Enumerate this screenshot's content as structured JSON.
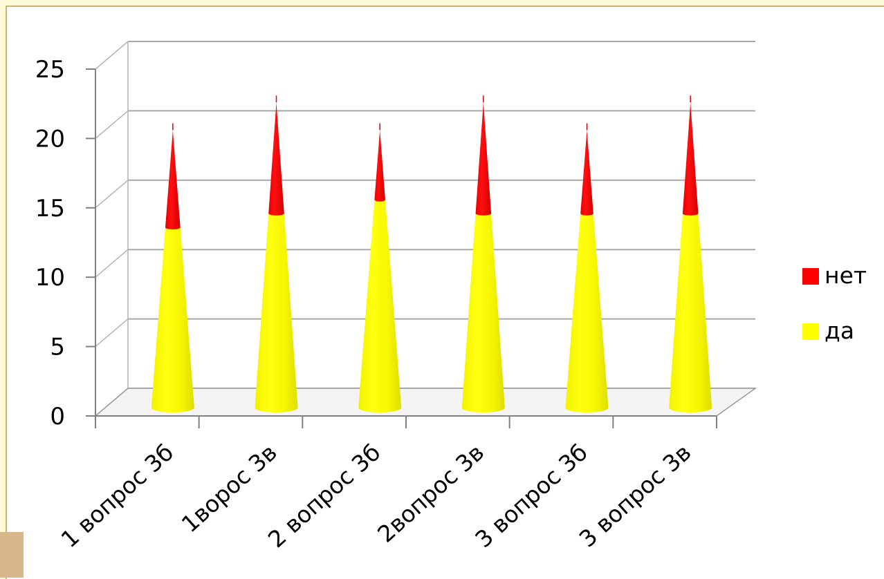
{
  "chart_data": {
    "type": "bar",
    "shape": "cone",
    "stacked": true,
    "three_d": true,
    "categories": [
      "1 вопрос 3б",
      "1ворос 3в",
      "2 вопрос 3б",
      "2вопрос 3в",
      "3 вопрос 3б",
      "3 вопрос 3в"
    ],
    "series": [
      {
        "name": "да",
        "values": [
          13,
          14,
          15,
          14,
          14,
          14
        ],
        "color": "#ffff00"
      },
      {
        "name": "нет",
        "values": [
          7,
          8,
          5,
          8,
          6,
          8
        ],
        "color": "#ff0000"
      }
    ],
    "title": "",
    "xlabel": "",
    "ylabel": "",
    "ylim": [
      0,
      25
    ],
    "yticks": [
      "0",
      "5",
      "10",
      "15",
      "20",
      "25"
    ],
    "grid": true,
    "legend": {
      "position": "right",
      "order": [
        "нет",
        "да"
      ]
    }
  }
}
